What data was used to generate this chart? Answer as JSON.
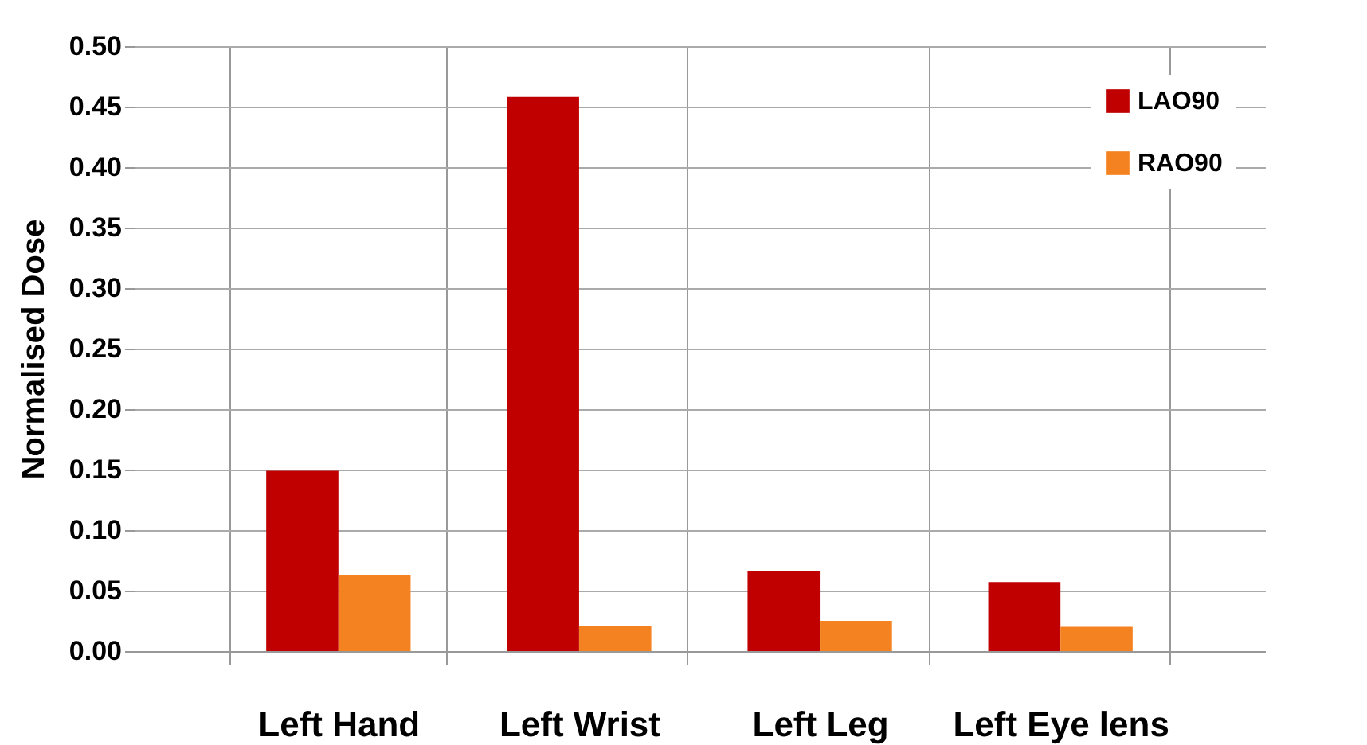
{
  "chart_data": {
    "type": "bar",
    "ylabel": "Normalised Dose",
    "categories": [
      "Left Hand",
      "Left Wrist",
      "Left Leg",
      "Left Eye lens"
    ],
    "series": [
      {
        "name": "LAO90",
        "color": "#c00000",
        "values": [
          0.149,
          0.458,
          0.066,
          0.057
        ]
      },
      {
        "name": "RAO90",
        "color": "#f58220",
        "values": [
          0.063,
          0.021,
          0.025,
          0.02
        ]
      }
    ],
    "ylim": [
      0,
      0.5
    ],
    "yticks": [
      {
        "value": 0,
        "label": "0.00"
      },
      {
        "value": 0.05,
        "label": "0.05"
      },
      {
        "value": 0.1,
        "label": "0.10"
      },
      {
        "value": 0.15,
        "label": "0.15"
      },
      {
        "value": 0.2,
        "label": "0.20"
      },
      {
        "value": 0.25,
        "label": "0.25"
      },
      {
        "value": 0.3,
        "label": "0.30"
      },
      {
        "value": 0.35,
        "label": "0.35"
      },
      {
        "value": 0.4,
        "label": "0.40"
      },
      {
        "value": 0.45,
        "label": "0.45"
      },
      {
        "value": 0.5,
        "label": "0.50"
      }
    ],
    "grid": true,
    "legend": "top right"
  }
}
